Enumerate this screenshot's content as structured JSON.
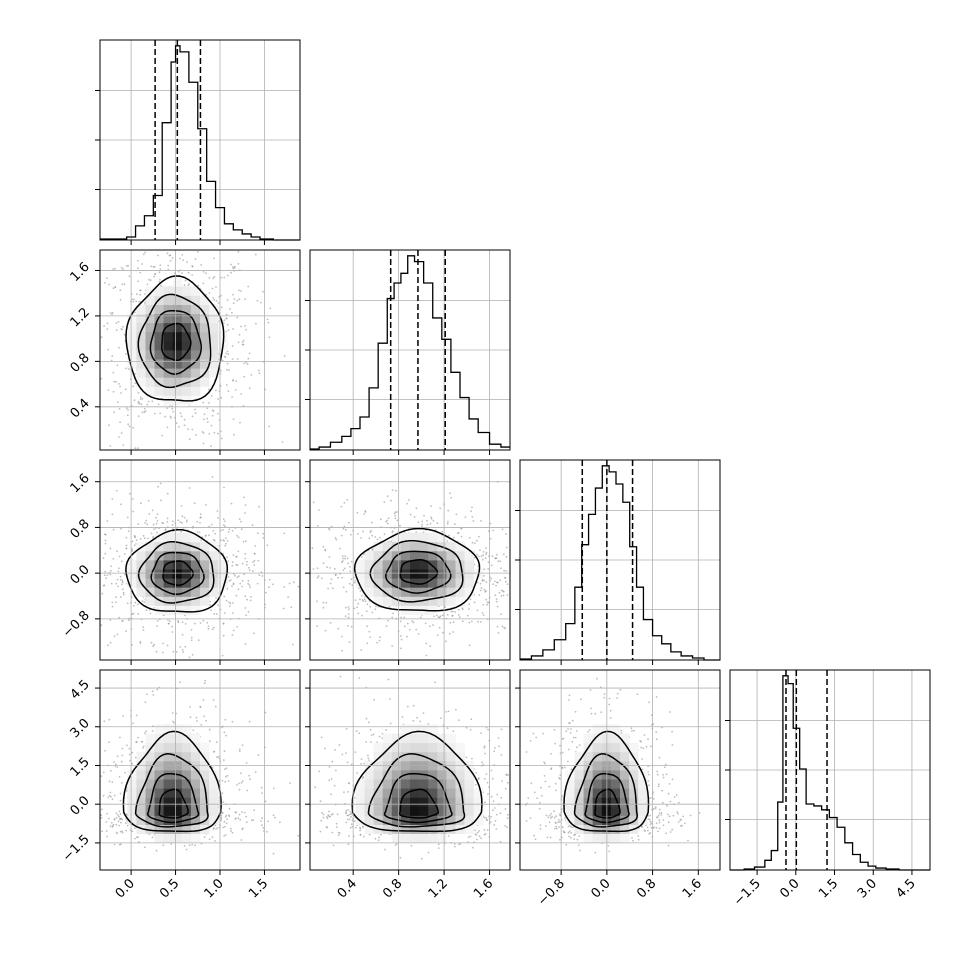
{
  "chart_data": {
    "type": "corner",
    "parameters": [
      {
        "range": [
          -0.35,
          1.9
        ],
        "ticks": [
          "0.0",
          "0.5",
          "1.0",
          "1.5"
        ],
        "tick_values": [
          0.0,
          0.5,
          1.0,
          1.5
        ],
        "quantiles": [
          0.27,
          0.52,
          0.78
        ],
        "hist": {
          "edges": [
            -0.35,
            -0.25,
            -0.15,
            -0.05,
            0.05,
            0.15,
            0.25,
            0.35,
            0.45,
            0.5,
            0.55,
            0.65,
            0.75,
            0.85,
            0.95,
            1.05,
            1.15,
            1.25,
            1.35,
            1.45,
            1.6,
            1.9
          ],
          "counts": [
            0.5,
            0.5,
            0.5,
            1.5,
            7,
            12,
            22,
            58,
            88,
            96,
            93,
            78,
            55,
            29,
            16,
            8,
            5,
            3,
            1.5,
            0.5,
            0
          ]
        }
      },
      {
        "range": [
          0.02,
          1.78
        ],
        "ticks": [
          "0.4",
          "0.8",
          "1.2",
          "1.6"
        ],
        "tick_values": [
          0.4,
          0.8,
          1.2,
          1.6
        ],
        "quantiles": [
          0.73,
          0.97,
          1.21
        ],
        "hist": {
          "edges": [
            0.02,
            0.1,
            0.2,
            0.3,
            0.38,
            0.46,
            0.54,
            0.62,
            0.7,
            0.76,
            0.82,
            0.88,
            0.94,
            1.02,
            1.1,
            1.18,
            1.26,
            1.34,
            1.42,
            1.5,
            1.6,
            1.7,
            1.78
          ],
          "counts": [
            0.5,
            1.5,
            4,
            7,
            11,
            17,
            32,
            55,
            78,
            86,
            91,
            100,
            97,
            86,
            68,
            57,
            40,
            27,
            16,
            9,
            3,
            1.5
          ]
        }
      },
      {
        "range": [
          -1.52,
          1.98
        ],
        "ticks": [
          "−0.8",
          "0.0",
          "0.8",
          "1.6"
        ],
        "tick_values": [
          -0.8,
          0.0,
          0.8,
          1.6
        ],
        "quantiles": [
          -0.43,
          0.0,
          0.45
        ],
        "hist": {
          "edges": [
            -1.52,
            -1.32,
            -1.12,
            -0.92,
            -0.72,
            -0.56,
            -0.44,
            -0.32,
            -0.2,
            -0.08,
            0.04,
            0.16,
            0.28,
            0.4,
            0.52,
            0.64,
            0.8,
            0.96,
            1.12,
            1.3,
            1.5,
            1.7,
            1.98
          ],
          "counts": [
            0.5,
            2,
            5,
            10,
            18,
            36,
            57,
            72,
            85,
            96,
            93,
            87,
            78,
            56,
            36,
            20,
            12,
            8,
            4,
            2,
            1,
            0
          ]
        }
      },
      {
        "range": [
          -2.55,
          5.2
        ],
        "ticks": [
          "−1.5",
          "0.0",
          "1.5",
          "3.0",
          "4.5"
        ],
        "tick_values": [
          -1.5,
          0.0,
          1.5,
          3.0,
          4.5
        ],
        "quantiles": [
          -0.38,
          0.02,
          1.21
        ],
        "hist": {
          "edges": [
            -2.55,
            -2.0,
            -1.6,
            -1.2,
            -0.95,
            -0.7,
            -0.5,
            -0.3,
            -0.1,
            0.15,
            0.4,
            0.7,
            1.0,
            1.3,
            1.6,
            1.9,
            2.2,
            2.5,
            2.8,
            3.1,
            3.5,
            4.0,
            5.2
          ],
          "counts": [
            0,
            0.5,
            1.5,
            5,
            10,
            35,
            100,
            96,
            73,
            52,
            34,
            33,
            31,
            27,
            22,
            14,
            8,
            4,
            2,
            1,
            0.5,
            0
          ]
        }
      }
    ],
    "grid": true,
    "pairs": [
      {
        "row": 1,
        "col": 0,
        "center": [
          0.5,
          0.97
        ],
        "sigma": [
          0.26,
          0.26
        ],
        "skew_y": false
      },
      {
        "row": 2,
        "col": 0,
        "center": [
          0.52,
          0.0
        ],
        "sigma": [
          0.27,
          0.34
        ],
        "skew_y": false
      },
      {
        "row": 2,
        "col": 1,
        "center": [
          0.97,
          0.02
        ],
        "sigma": [
          0.26,
          0.34
        ],
        "skew_y": false
      },
      {
        "row": 3,
        "col": 0,
        "center": [
          0.47,
          -0.3
        ],
        "sigma": [
          0.26,
          0.9
        ],
        "skew_y": true
      },
      {
        "row": 3,
        "col": 1,
        "center": [
          0.97,
          -0.3
        ],
        "sigma": [
          0.27,
          0.9
        ],
        "skew_y": true
      },
      {
        "row": 3,
        "col": 2,
        "center": [
          0.0,
          -0.3
        ],
        "sigma": [
          0.35,
          0.9
        ],
        "skew_y": true
      }
    ],
    "contour_levels": [
      0.62,
      1.07,
      1.55,
      2.1
    ]
  }
}
